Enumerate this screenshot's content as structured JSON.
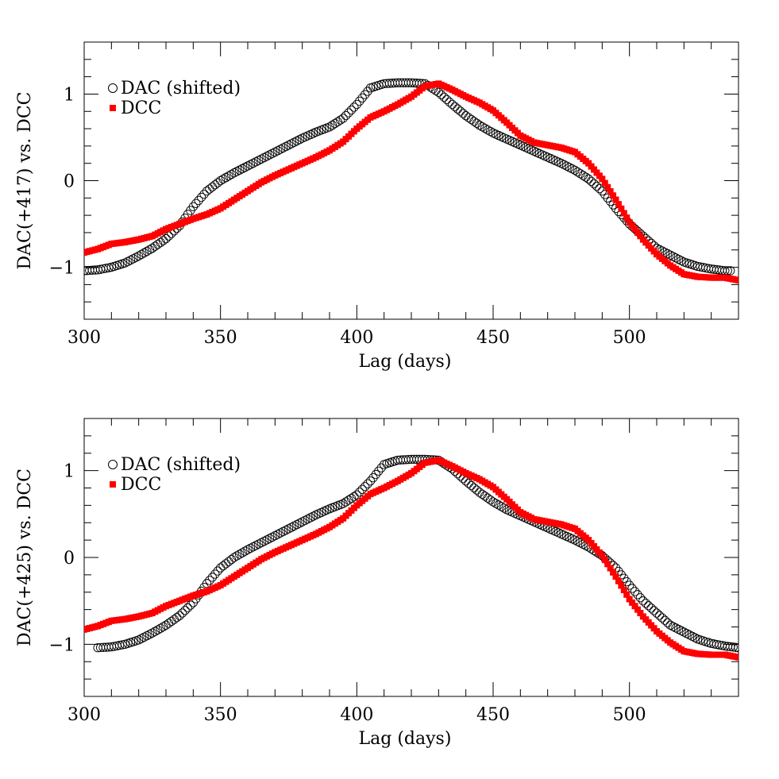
{
  "chart_data": [
    {
      "type": "scatter",
      "panel": "top",
      "xlabel": "Lag (days)",
      "ylabel": "DAC(+417) vs. DCC",
      "xlim": [
        300,
        540
      ],
      "ylim": [
        -1.6,
        1.6
      ],
      "x_ticks": [
        300,
        350,
        400,
        450,
        500
      ],
      "y_ticks": [
        -1,
        0,
        1
      ],
      "grid": false,
      "legend_position": "top-left",
      "series": [
        {
          "name": "DAC (shifted)",
          "marker": "open-circle",
          "color": "#000000",
          "x": [
            300,
            305,
            310,
            315,
            320,
            325,
            330,
            335,
            340,
            345,
            350,
            355,
            360,
            365,
            370,
            375,
            380,
            385,
            390,
            395,
            400,
            405,
            410,
            415,
            420,
            425,
            430,
            435,
            440,
            445,
            450,
            455,
            460,
            465,
            470,
            475,
            480,
            485,
            490,
            495,
            500,
            505,
            510,
            515,
            520,
            525,
            530,
            535,
            537
          ],
          "y": [
            -1.04,
            -1.03,
            -1.0,
            -0.95,
            -0.87,
            -0.78,
            -0.67,
            -0.52,
            -0.3,
            -0.12,
            0.0,
            0.09,
            0.17,
            0.25,
            0.33,
            0.41,
            0.49,
            0.56,
            0.62,
            0.72,
            0.88,
            1.07,
            1.12,
            1.13,
            1.13,
            1.12,
            1.02,
            0.88,
            0.75,
            0.64,
            0.55,
            0.48,
            0.41,
            0.34,
            0.27,
            0.2,
            0.12,
            0.02,
            -0.12,
            -0.32,
            -0.5,
            -0.64,
            -0.78,
            -0.86,
            -0.94,
            -0.99,
            -1.02,
            -1.04,
            -1.04
          ]
        },
        {
          "name": "DCC",
          "marker": "filled-square",
          "color": "#ff0000",
          "x": [
            300,
            305,
            310,
            315,
            320,
            325,
            330,
            335,
            340,
            345,
            350,
            355,
            360,
            365,
            370,
            375,
            380,
            385,
            390,
            395,
            400,
            405,
            410,
            415,
            420,
            425,
            430,
            435,
            440,
            445,
            450,
            455,
            460,
            465,
            470,
            475,
            480,
            485,
            490,
            495,
            500,
            505,
            510,
            515,
            520,
            525,
            530,
            535,
            540
          ],
          "y": [
            -0.83,
            -0.79,
            -0.73,
            -0.71,
            -0.68,
            -0.64,
            -0.56,
            -0.5,
            -0.44,
            -0.39,
            -0.32,
            -0.22,
            -0.12,
            -0.02,
            0.06,
            0.13,
            0.2,
            0.27,
            0.35,
            0.45,
            0.6,
            0.73,
            0.8,
            0.88,
            0.97,
            1.09,
            1.12,
            1.05,
            0.97,
            0.9,
            0.81,
            0.67,
            0.52,
            0.44,
            0.41,
            0.38,
            0.33,
            0.2,
            0.02,
            -0.22,
            -0.48,
            -0.68,
            -0.85,
            -0.98,
            -1.08,
            -1.11,
            -1.12,
            -1.12,
            -1.15
          ]
        }
      ]
    },
    {
      "type": "scatter",
      "panel": "bottom",
      "xlabel": "Lag (days)",
      "ylabel": "DAC(+425) vs. DCC",
      "xlim": [
        300,
        540
      ],
      "ylim": [
        -1.6,
        1.6
      ],
      "x_ticks": [
        300,
        350,
        400,
        450,
        500
      ],
      "y_ticks": [
        -1,
        0,
        1
      ],
      "grid": false,
      "legend_position": "top-left",
      "series": [
        {
          "name": "DAC (shifted)",
          "marker": "open-circle",
          "color": "#000000",
          "x": [
            305,
            310,
            315,
            320,
            325,
            330,
            335,
            340,
            345,
            350,
            355,
            360,
            365,
            370,
            375,
            380,
            385,
            390,
            395,
            400,
            405,
            410,
            415,
            420,
            425,
            430,
            435,
            440,
            445,
            450,
            455,
            460,
            465,
            470,
            475,
            480,
            485,
            490,
            495,
            500,
            505,
            510,
            515,
            520,
            525,
            530,
            535,
            540
          ],
          "y": [
            -1.04,
            -1.03,
            -1.0,
            -0.95,
            -0.87,
            -0.78,
            -0.67,
            -0.52,
            -0.3,
            -0.12,
            0.0,
            0.09,
            0.17,
            0.25,
            0.33,
            0.41,
            0.49,
            0.56,
            0.62,
            0.72,
            0.88,
            1.07,
            1.12,
            1.13,
            1.13,
            1.12,
            1.02,
            0.88,
            0.75,
            0.64,
            0.55,
            0.48,
            0.41,
            0.34,
            0.27,
            0.2,
            0.12,
            0.02,
            -0.12,
            -0.32,
            -0.5,
            -0.64,
            -0.78,
            -0.86,
            -0.94,
            -0.99,
            -1.02,
            -1.04
          ]
        },
        {
          "name": "DCC",
          "marker": "filled-square",
          "color": "#ff0000",
          "x": [
            300,
            305,
            310,
            315,
            320,
            325,
            330,
            335,
            340,
            345,
            350,
            355,
            360,
            365,
            370,
            375,
            380,
            385,
            390,
            395,
            400,
            405,
            410,
            415,
            420,
            425,
            430,
            435,
            440,
            445,
            450,
            455,
            460,
            465,
            470,
            475,
            480,
            485,
            490,
            495,
            500,
            505,
            510,
            515,
            520,
            525,
            530,
            535,
            540
          ],
          "y": [
            -0.83,
            -0.79,
            -0.73,
            -0.71,
            -0.68,
            -0.64,
            -0.56,
            -0.5,
            -0.44,
            -0.39,
            -0.32,
            -0.22,
            -0.12,
            -0.02,
            0.06,
            0.13,
            0.2,
            0.27,
            0.35,
            0.45,
            0.6,
            0.73,
            0.8,
            0.88,
            0.97,
            1.09,
            1.12,
            1.05,
            0.97,
            0.9,
            0.81,
            0.67,
            0.52,
            0.44,
            0.41,
            0.38,
            0.33,
            0.2,
            0.02,
            -0.22,
            -0.48,
            -0.68,
            -0.85,
            -0.98,
            -1.08,
            -1.11,
            -1.12,
            -1.12,
            -1.15
          ]
        }
      ]
    }
  ]
}
